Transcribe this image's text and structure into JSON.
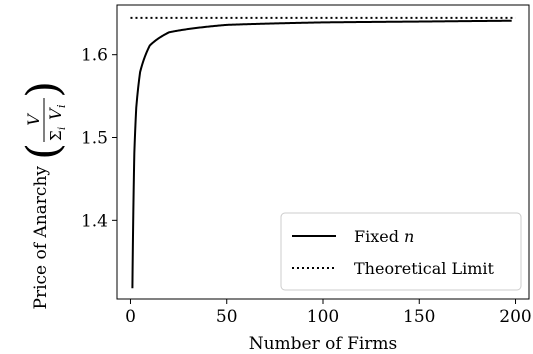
{
  "chart_data": {
    "type": "line",
    "xlabel": "Number of Firms",
    "ylabel_text": "Price of Anarchy",
    "ylabel_math": {
      "numerator": "V",
      "denominator_sum": "Σ",
      "denominator_index": "i",
      "denominator_var": "V",
      "denominator_sub": "i"
    },
    "xlim": [
      -7,
      207
    ],
    "ylim": [
      1.305,
      1.66
    ],
    "xticks": [
      0,
      50,
      100,
      150,
      200
    ],
    "yticks": [
      1.4,
      1.5,
      1.6
    ],
    "xtick_labels": [
      "0",
      "50",
      "100",
      "150",
      "200"
    ],
    "ytick_labels": [
      "1.4",
      "1.5",
      "1.6"
    ],
    "legend_position": "lower-right",
    "series": [
      {
        "name": "Fixed n",
        "name_plain": "Fixed ",
        "name_italic": "n",
        "style": "solid",
        "color": "#000000",
        "formula_points": {
          "x": [
            1,
            2,
            3,
            5,
            10,
            20,
            50,
            100,
            150,
            198
          ],
          "y": [
            1.318,
            1.481,
            1.536,
            1.579,
            1.611,
            1.627,
            1.636,
            1.639,
            1.64,
            1.641
          ]
        }
      },
      {
        "name": "Theoretical Limit",
        "style": "dotted",
        "color": "#000000",
        "x": [
          0,
          200
        ],
        "y": [
          1.6445,
          1.6445
        ]
      }
    ]
  }
}
